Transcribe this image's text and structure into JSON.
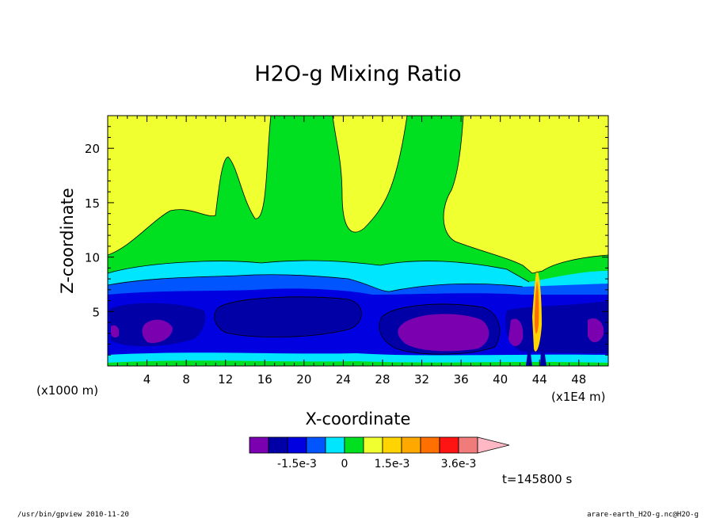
{
  "chart_data": {
    "type": "contour",
    "title": "H2O-g Mixing Ratio",
    "xlabel": "X-coordinate",
    "ylabel": "Z-coordinate",
    "x_unit_left": "(x1000 m)",
    "x_unit_right": "(x1E4 m)",
    "xlim": [
      0,
      51
    ],
    "ylim": [
      0,
      23
    ],
    "x_ticks": [
      4,
      8,
      12,
      16,
      20,
      24,
      28,
      32,
      36,
      40,
      44,
      48
    ],
    "y_ticks": [
      5,
      10,
      15,
      20
    ],
    "colorbar": {
      "colors": [
        "#7a00b0",
        "#0000a6",
        "#0000e0",
        "#0055ff",
        "#00e6ff",
        "#00e020",
        "#f0ff30",
        "#ffd400",
        "#ffa800",
        "#ff7000",
        "#ff1414",
        "#f07b7b",
        "#ffb8c4"
      ],
      "labels": [
        "-1.5e-3",
        "0",
        "1.5e-3",
        "3.6e-3"
      ]
    },
    "time_label": "t=145800 s"
  },
  "footer": {
    "left": "/usr/bin/gpview  2010-11-20",
    "right": "arare-earth_H2O-g.nc@H2O-g"
  }
}
